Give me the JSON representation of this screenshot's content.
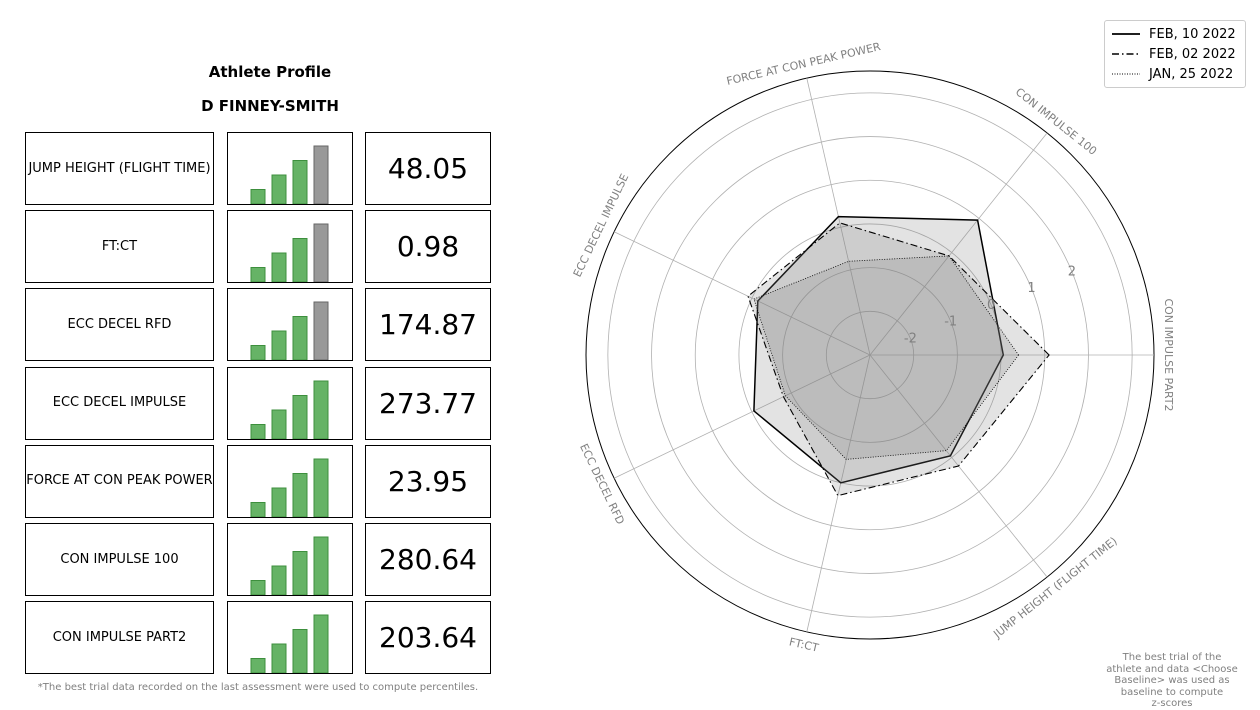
{
  "profile": {
    "title": "Athlete Profile",
    "athlete": "D FINNEY-SMITH",
    "footnote": "*The best trial data recorded on the last assessment were used to compute percentiles."
  },
  "metrics": [
    {
      "name": "JUMP HEIGHT\n(FLIGHT TIME)",
      "value": "48.05",
      "percentile_bars": [
        0.25,
        0.5,
        0.75,
        1.0
      ],
      "highlight": "gray"
    },
    {
      "name": "FT:CT",
      "value": "0.98",
      "percentile_bars": [
        0.25,
        0.5,
        0.75,
        1.0
      ],
      "highlight": "gray"
    },
    {
      "name": "ECC DECEL RFD",
      "value": "174.87",
      "percentile_bars": [
        0.25,
        0.5,
        0.75,
        1.0
      ],
      "highlight": "gray"
    },
    {
      "name": "ECC DECEL IMPULSE",
      "value": "273.77",
      "percentile_bars": [
        0.25,
        0.5,
        0.75,
        1.0
      ],
      "highlight": "green"
    },
    {
      "name": "FORCE AT CON PEAK POWER",
      "value": "23.95",
      "percentile_bars": [
        0.25,
        0.5,
        0.75,
        1.0
      ],
      "highlight": "green"
    },
    {
      "name": "CON IMPULSE 100",
      "value": "280.64",
      "percentile_bars": [
        0.25,
        0.5,
        0.75,
        1.0
      ],
      "highlight": "green"
    },
    {
      "name": "CON IMPULSE PART2",
      "value": "203.64",
      "percentile_bars": [
        0.25,
        0.5,
        0.75,
        1.0
      ],
      "highlight": "green"
    }
  ],
  "colors": {
    "bar_green": "#66b366",
    "bar_green_edge": "#3d8f3d",
    "bar_gray": "#999999",
    "bar_gray_edge": "#666666"
  },
  "chart_data": {
    "type": "radar",
    "axes": [
      "CON IMPULSE PART2",
      "CON IMPULSE 100",
      "FORCE AT CON PEAK POWER",
      "ECC DECEL IMPULSE",
      "ECC DECEL RFD",
      "FT:CT",
      "JUMP HEIGHT (FLIGHT TIME)"
    ],
    "rlim": [
      -3,
      3.5
    ],
    "rticks": [
      -2,
      -1,
      0,
      1,
      2
    ],
    "series": [
      {
        "name": "FEB, 10 2022",
        "style": "solid",
        "values": [
          0.05,
          0.95,
          0.25,
          -0.15,
          -0.05,
          0.0,
          -0.05
        ]
      },
      {
        "name": "FEB, 02 2022",
        "style": "dashdot",
        "values": [
          1.1,
          -0.1,
          0.1,
          0.1,
          -0.8,
          0.3,
          0.25
        ]
      },
      {
        "name": "JAN, 25 2022",
        "style": "dotted",
        "values": [
          0.4,
          -0.1,
          -0.8,
          -0.05,
          -0.85,
          -0.55,
          -0.2
        ]
      }
    ],
    "grid": true,
    "legend": "top-right",
    "note": "The best trial of the\nathlete and data <Choose\nBaseline> was used as\nbaseline to compute\nz-scores"
  }
}
